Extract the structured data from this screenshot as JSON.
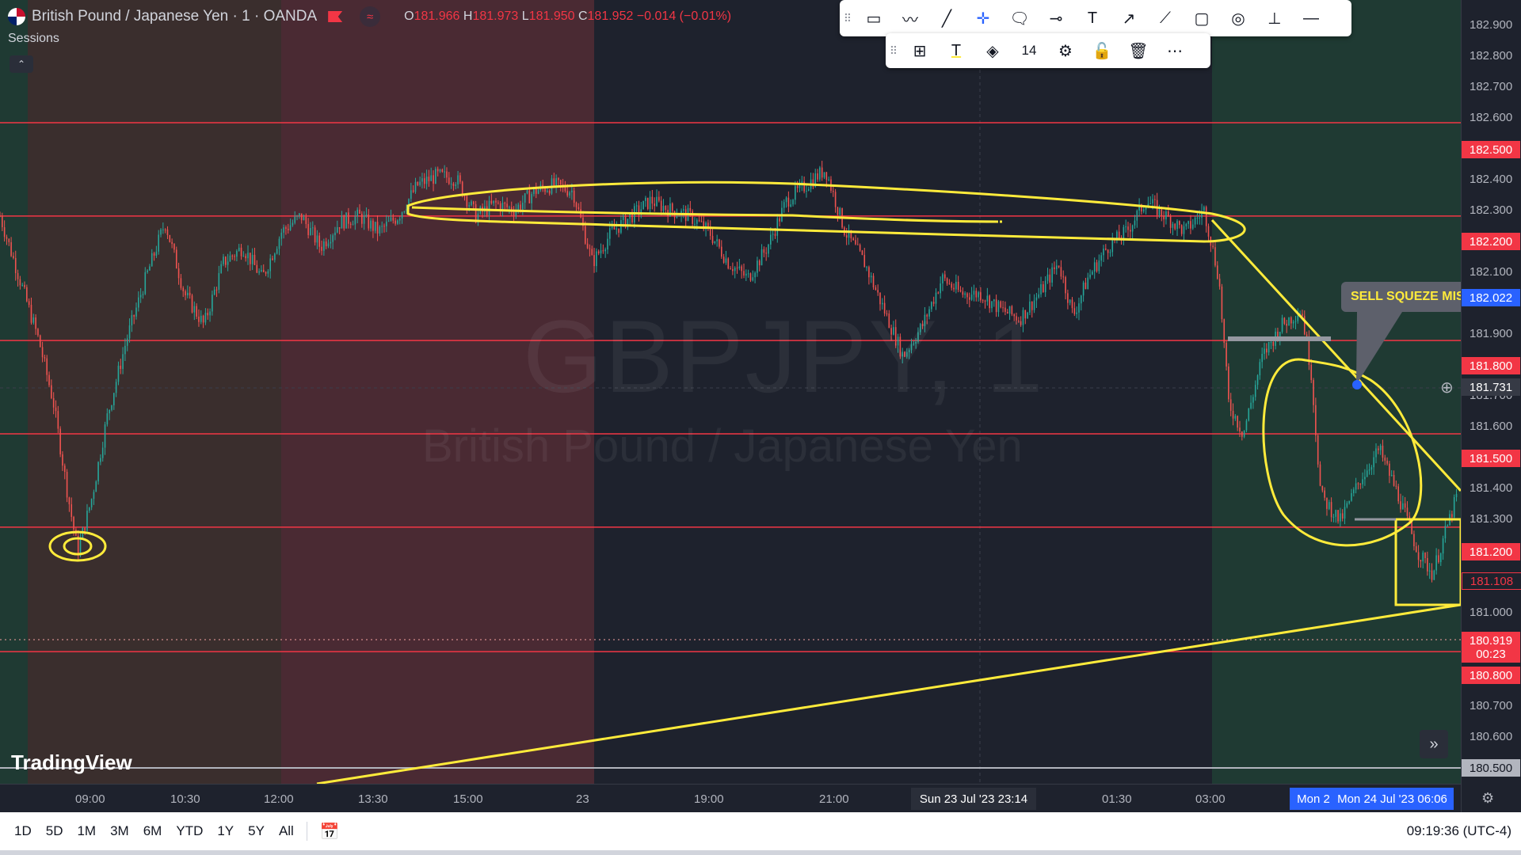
{
  "header": {
    "symbol_title": "British Pound / Japanese Yen · 1 · OANDA",
    "ohlc": {
      "o_label": "O",
      "o": "181.966",
      "h_label": "H",
      "h": "181.973",
      "l_label": "L",
      "l": "181.950",
      "c_label": "C",
      "c": "181.952",
      "change": "−0.014 (−0.01%)"
    },
    "sessions_label": "Sessions"
  },
  "watermark": {
    "ticker": "GBPJPY, 1",
    "description": "British Pound / Japanese Yen"
  },
  "toolbar": {
    "row1_icons": [
      "rectangle-icon",
      "brush-icon",
      "trend-line-icon",
      "crosshair-icon",
      "callout-icon",
      "horizontal-ray-icon",
      "text-icon",
      "arrow-icon",
      "path-icon",
      "note-icon",
      "circle-icon",
      "price-range-icon",
      "horizontal-line-icon"
    ],
    "row2_icons": [
      "template-icon",
      "text-color-icon",
      "fill-color-icon",
      "font-size-value",
      "settings-icon",
      "lock-icon",
      "delete-icon",
      "more-icon"
    ],
    "font_size": "14"
  },
  "annotation": {
    "callout_text": "SELL SQUEZE MISS"
  },
  "price_axis": {
    "labels": [
      "182.900",
      "182.800",
      "182.700",
      "182.600",
      "182.400",
      "182.300",
      "182.100",
      "181.900",
      "181.700",
      "181.600",
      "181.400",
      "181.300",
      "181.000",
      "180.700",
      "180.600"
    ],
    "badges": [
      {
        "text": "182.500",
        "color": "#f23645"
      },
      {
        "text": "182.200",
        "color": "#f23645"
      },
      {
        "text": "182.022",
        "color": "#2962ff"
      },
      {
        "text": "181.800",
        "color": "#f23645"
      },
      {
        "text": "181.731",
        "color": "#363a45"
      },
      {
        "text": "181.500",
        "color": "#f23645"
      },
      {
        "text": "181.200",
        "color": "#f23645"
      },
      {
        "text": "181.108",
        "color": "#1e222d"
      },
      {
        "text": "180.919",
        "color": "#f23645"
      },
      {
        "text": "00:23",
        "color": "#f23645"
      },
      {
        "text": "180.800",
        "color": "#f23645"
      },
      {
        "text": "180.500",
        "color": "#b2b5be"
      }
    ]
  },
  "time_axis": {
    "labels": [
      "09:00",
      "10:30",
      "12:00",
      "13:30",
      "15:00",
      "23",
      "19:00",
      "21:00",
      "01:30",
      "03:00"
    ],
    "crosshair_label": "Sun 23 Jul '23   23:14",
    "range_label_a": "Mon 2",
    "range_label_b": "Mon 24 Jul '23   06:06"
  },
  "bottom_bar": {
    "ranges": [
      "1D",
      "5D",
      "1M",
      "3M",
      "6M",
      "YTD",
      "1Y",
      "5Y",
      "All"
    ],
    "clock": "09:19:36 (UTC-4)"
  },
  "branding": {
    "logo_text": "TradingView"
  },
  "colors": {
    "background": "#1e222d",
    "level_line": "#f23645",
    "drawing": "#ffeb3b",
    "bull": "#26a69a",
    "bear": "#ef5350",
    "session_asia": "#3a2e2d",
    "session_london": "#4a2a33",
    "session_early": "#1f3a33"
  },
  "chart_data": {
    "type": "candlestick",
    "y_range": [
      180.5,
      182.95
    ],
    "levels": [
      182.5,
      182.2,
      181.8,
      181.5,
      181.2,
      180.8
    ],
    "close_path": [
      [
        0,
        182.2
      ],
      [
        20,
        182.0
      ],
      [
        40,
        181.8
      ],
      [
        55,
        181.6
      ],
      [
        70,
        181.3
      ],
      [
        80,
        181.12
      ],
      [
        95,
        181.3
      ],
      [
        110,
        181.55
      ],
      [
        130,
        181.8
      ],
      [
        150,
        182.0
      ],
      [
        170,
        182.18
      ],
      [
        190,
        181.95
      ],
      [
        210,
        181.85
      ],
      [
        230,
        182.05
      ],
      [
        250,
        182.1
      ],
      [
        270,
        182.0
      ],
      [
        290,
        182.15
      ],
      [
        310,
        182.2
      ],
      [
        330,
        182.1
      ],
      [
        350,
        182.18
      ],
      [
        370,
        182.2
      ],
      [
        390,
        182.15
      ],
      [
        410,
        182.2
      ],
      [
        430,
        182.3
      ],
      [
        450,
        182.33
      ],
      [
        470,
        182.32
      ],
      [
        490,
        182.2
      ],
      [
        510,
        182.24
      ],
      [
        530,
        182.22
      ],
      [
        550,
        182.28
      ],
      [
        570,
        182.3
      ],
      [
        590,
        182.28
      ],
      [
        610,
        182.05
      ],
      [
        630,
        182.15
      ],
      [
        650,
        182.2
      ],
      [
        670,
        182.25
      ],
      [
        690,
        182.22
      ],
      [
        710,
        182.2
      ],
      [
        730,
        182.15
      ],
      [
        750,
        182.05
      ],
      [
        770,
        182.0
      ],
      [
        790,
        182.1
      ],
      [
        810,
        182.25
      ],
      [
        830,
        182.3
      ],
      [
        850,
        182.35
      ],
      [
        870,
        182.15
      ],
      [
        890,
        182.05
      ],
      [
        910,
        181.9
      ],
      [
        930,
        181.75
      ],
      [
        950,
        181.85
      ],
      [
        970,
        182.0
      ],
      [
        990,
        181.95
      ],
      [
        1010,
        181.95
      ],
      [
        1030,
        181.9
      ],
      [
        1050,
        181.87
      ],
      [
        1070,
        181.95
      ],
      [
        1090,
        182.05
      ],
      [
        1105,
        181.88
      ],
      [
        1120,
        182.0
      ],
      [
        1140,
        182.1
      ],
      [
        1160,
        182.15
      ],
      [
        1180,
        182.25
      ],
      [
        1200,
        182.2
      ],
      [
        1220,
        182.15
      ],
      [
        1240,
        182.22
      ],
      [
        1255,
        182.0
      ],
      [
        1265,
        181.6
      ],
      [
        1280,
        181.5
      ],
      [
        1300,
        181.75
      ],
      [
        1320,
        181.85
      ],
      [
        1340,
        181.9
      ],
      [
        1350,
        181.7
      ],
      [
        1360,
        181.3
      ],
      [
        1380,
        181.22
      ],
      [
        1400,
        181.35
      ],
      [
        1420,
        181.45
      ],
      [
        1440,
        181.3
      ],
      [
        1460,
        181.12
      ],
      [
        1475,
        181.05
      ],
      [
        1490,
        181.2
      ],
      [
        1500,
        181.3
      ]
    ]
  }
}
